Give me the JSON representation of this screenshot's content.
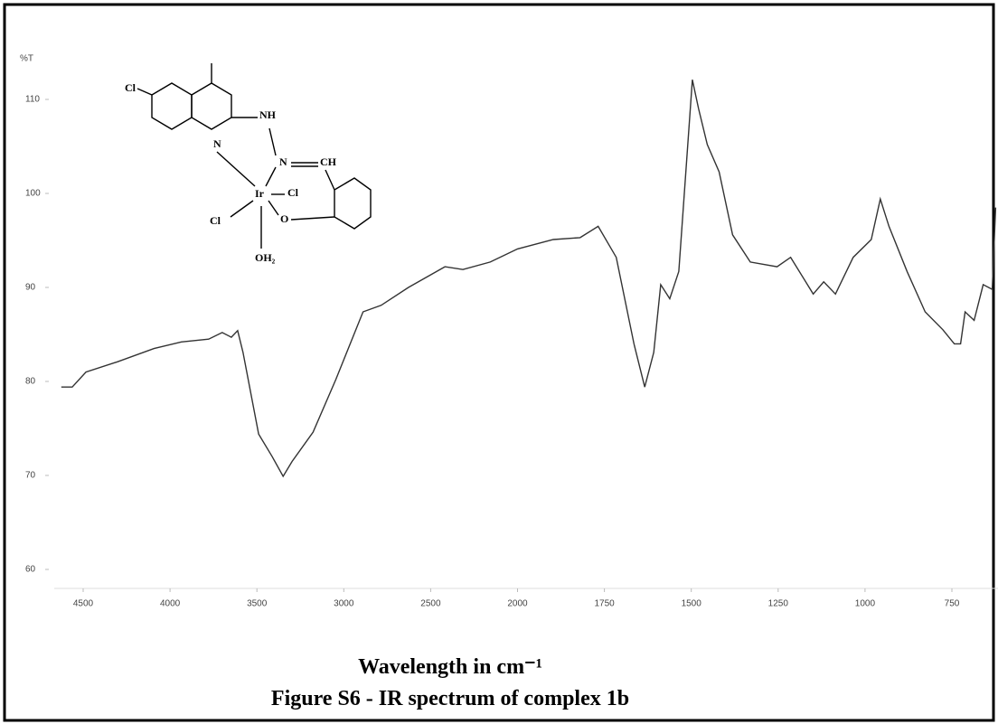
{
  "chart_data": {
    "type": "line",
    "y_label": "%T",
    "x_label": "Wavelength in cm⁻¹",
    "caption": "Figure S6 - IR spectrum of complex 1b",
    "structure": {
      "labels": [
        "Cl",
        "NH",
        "N",
        "N",
        "CH",
        "Ir",
        "Cl",
        "Cl",
        "O",
        "OH₂"
      ]
    },
    "xlim": [
      4640,
      620
    ],
    "xticks": [
      4500,
      4000,
      3500,
      3000,
      2500,
      2000,
      1750,
      1500,
      1250,
      1000,
      750
    ],
    "ylim": [
      58,
      118
    ],
    "yticks": [
      60,
      70,
      80,
      90,
      100,
      110
    ],
    "series": [
      {
        "name": "IR spectrum",
        "color": "#333333",
        "x": [
          4626,
          4563,
          4484,
          4301,
          4092,
          3935,
          3778,
          3700,
          3647,
          3611,
          3580,
          3490,
          3412,
          3349,
          3297,
          3177,
          3046,
          2889,
          2785,
          2628,
          2418,
          2314,
          2157,
          2000,
          1897,
          1820,
          1768,
          1716,
          1665,
          1634,
          1608,
          1588,
          1562,
          1536,
          1497,
          1479,
          1454,
          1420,
          1381,
          1330,
          1253,
          1214,
          1149,
          1119,
          1085,
          1034,
          982,
          956,
          931,
          879,
          827,
          776,
          743,
          725,
          712,
          686,
          660,
          634,
          624
        ],
        "values": [
          79.4,
          79.4,
          81.0,
          82.1,
          83.5,
          84.2,
          84.5,
          85.2,
          84.7,
          85.4,
          83.1,
          74.4,
          72.0,
          69.9,
          71.5,
          74.6,
          80.2,
          87.4,
          88.1,
          90.0,
          92.2,
          91.9,
          92.7,
          94.1,
          95.1,
          95.3,
          96.5,
          93.2,
          84.0,
          79.4,
          83.1,
          90.3,
          88.8,
          91.7,
          112.1,
          109.0,
          105.2,
          102.3,
          95.6,
          92.7,
          92.2,
          93.2,
          89.3,
          90.6,
          89.3,
          93.2,
          95.1,
          99.4,
          96.5,
          91.7,
          87.4,
          85.5,
          84.0,
          84.0,
          87.4,
          86.5,
          90.3,
          89.8,
          98.5
        ]
      }
    ]
  }
}
